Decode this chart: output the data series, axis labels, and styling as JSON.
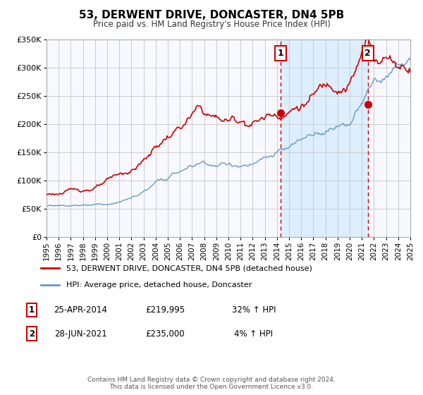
{
  "title": "53, DERWENT DRIVE, DONCASTER, DN4 5PB",
  "subtitle": "Price paid vs. HM Land Registry's House Price Index (HPI)",
  "red_line_label": "53, DERWENT DRIVE, DONCASTER, DN4 5PB (detached house)",
  "blue_line_label": "HPI: Average price, detached house, Doncaster",
  "annotation1_date": "25-APR-2014",
  "annotation1_price": "£219,995",
  "annotation1_hpi": "32% ↑ HPI",
  "annotation1_year": 2014.32,
  "annotation1_value": 219995,
  "annotation2_date": "28-JUN-2021",
  "annotation2_price": "£235,000",
  "annotation2_hpi": "4% ↑ HPI",
  "annotation2_year": 2021.49,
  "annotation2_value": 235000,
  "ylim_max": 350000,
  "yticks": [
    0,
    50000,
    100000,
    150000,
    200000,
    250000,
    300000,
    350000
  ],
  "ytick_labels": [
    "£0",
    "£50K",
    "£100K",
    "£150K",
    "£200K",
    "£250K",
    "£300K",
    "£350K"
  ],
  "xmin": 1995,
  "xmax": 2025,
  "grid_color": "#cccccc",
  "bg_color": "#f8f8ff",
  "highlight_bg": "#ddeeff",
  "red_color": "#cc0000",
  "blue_color": "#6699cc",
  "footer_text": "Contains HM Land Registry data © Crown copyright and database right 2024.\nThis data is licensed under the Open Government Licence v3.0."
}
